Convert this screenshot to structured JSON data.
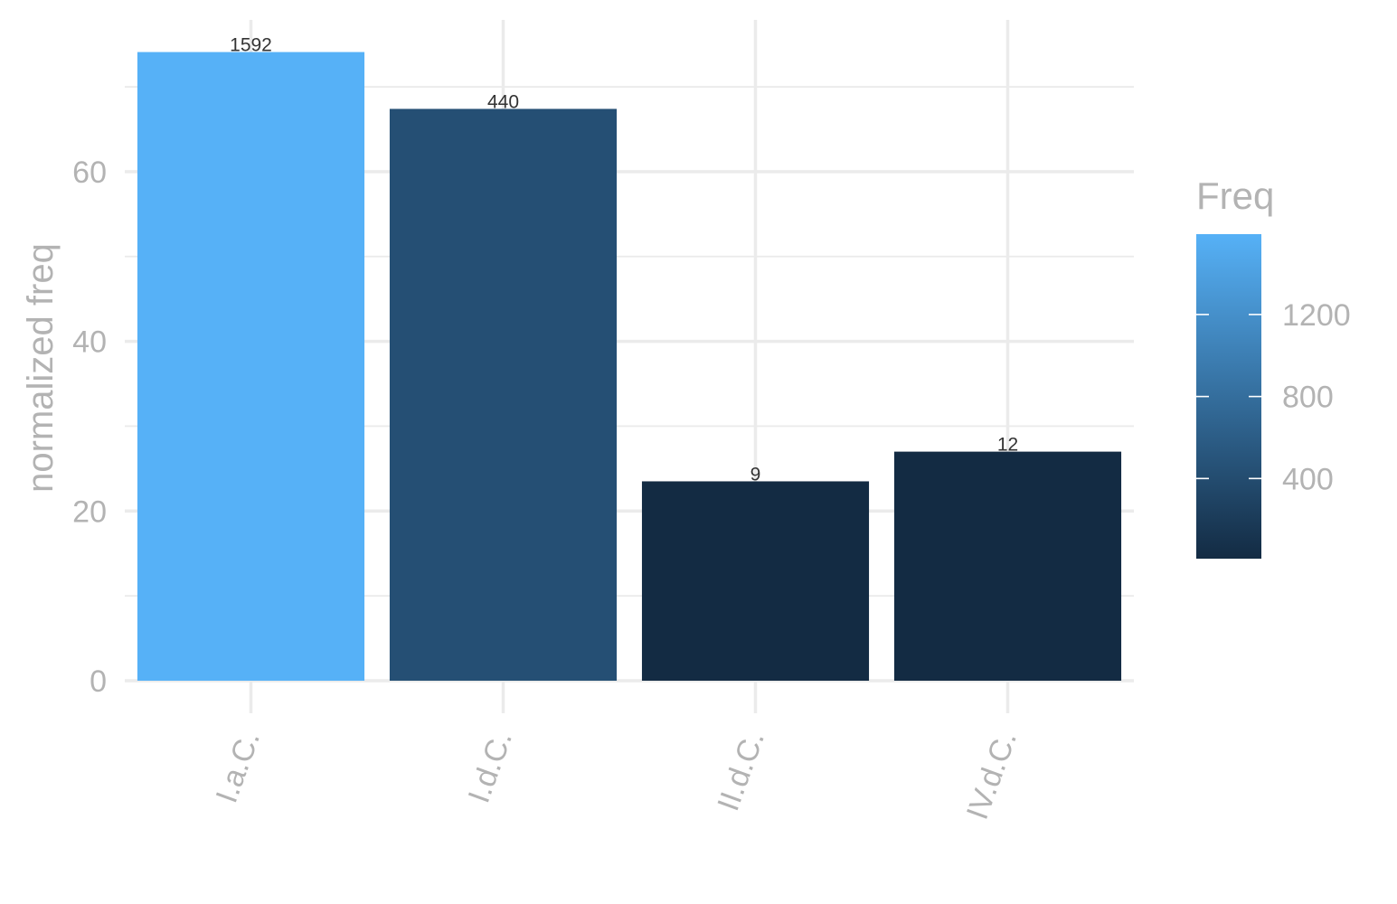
{
  "chart_data": {
    "type": "bar",
    "categories": [
      "I.a.C.",
      "I.d.C.",
      "II.d.C.",
      "IV.d.C."
    ],
    "values": [
      74.1,
      67.4,
      23.5,
      27.0
    ],
    "bar_labels": [
      "1592",
      "440",
      "9",
      "12"
    ],
    "fill_values": [
      1592,
      440,
      9,
      12
    ],
    "xlabel": "",
    "ylabel": "normalized freq",
    "ylim": [
      0,
      78
    ],
    "yticks": [
      "0",
      "20",
      "40",
      "60"
    ],
    "ytick_values": [
      0,
      20,
      40,
      60
    ],
    "grid": true,
    "legend": {
      "title": "Freq",
      "position": "right",
      "type": "colorbar",
      "range": [
        9,
        1592
      ],
      "breaks": [
        400,
        800,
        1200
      ],
      "break_labels": [
        "400",
        "800",
        "1200"
      ],
      "low_color": "#132B43",
      "high_color": "#56B1F7"
    }
  }
}
